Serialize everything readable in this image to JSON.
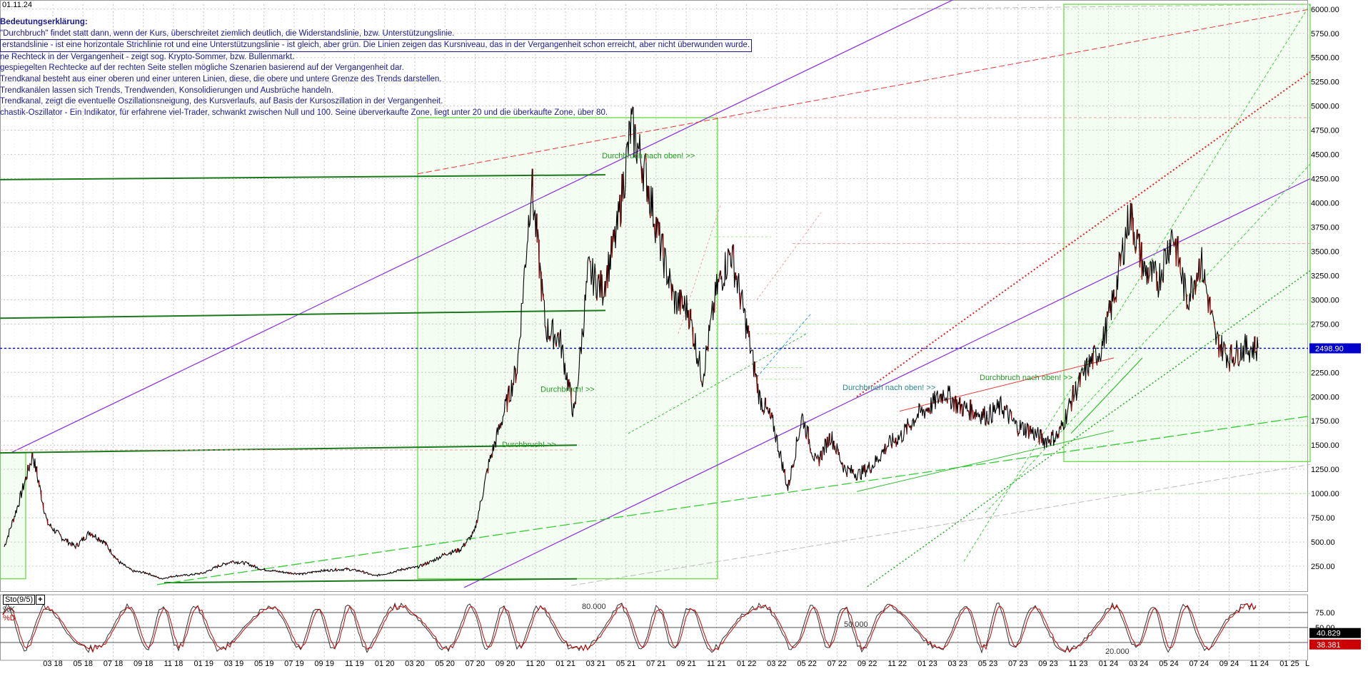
{
  "date_label": "01.11.24",
  "legend": {
    "title": "Bedeutungserklärung:",
    "lines": [
      "\"Durchbruch\" findet statt dann, wenn der Kurs, überschreitet ziemlich deutlich, die Widerstandslinie, bzw. Unterstützungslinie.",
      "erstandslinie - ist eine horizontale Strichlinie rot und eine Unterstützungslinie - ist gleich, aber grün. Die Linien zeigen das Kursniveau, das in der Vergangenheit schon erreicht, aber nicht überwunden wurde.",
      "ne Rechteck in der Vergangenheit - zeigt sog. Krypto-Sommer, bzw. Bullenmarkt.",
      "gespiegelten Rechtecke auf der rechten Seite stellen mögliche Szenarien basierend auf der Vergangenheit dar.",
      "Trendkanal besteht aus einer oberen und einer unteren Linien, diese, die obere und untere Grenze des Trends darstellen.",
      "Trendkanälen lassen sich Trends, Trendwenden, Konsolidierungen und Ausbrüche handeln.",
      "Trendkanal, zeigt die eventuelle Oszillationsneigung, des Kursverlaufs, auf Basis der Kursoszillation in der Vergangenheit.",
      "chastik-Oszillator - Ein Indikator, für erfahrene viel-Trader, schwankt zwischen Null und 100. Seine überverkaufte Zone, liegt unter 20 und die überkaufte Zone, über 80."
    ]
  },
  "colors": {
    "price_line": "#000000",
    "down_candle": "#cc0000",
    "purple_trend": "#8a2be2",
    "green_rect": "#66dd44",
    "dark_green": "#1a7a1a",
    "red_dash": "#ee3333",
    "current_price_box": "#0000cc",
    "k_box": "#000000",
    "d_box": "#cc0000"
  },
  "chart_data": [
    {
      "type": "line",
      "title": "",
      "y_ticks": [
        250,
        500,
        750,
        1000,
        1250,
        1500,
        1750,
        2000,
        2250,
        2500,
        2750,
        3000,
        3250,
        3500,
        3750,
        4000,
        4250,
        4500,
        4750,
        5000,
        5250,
        5500,
        5750,
        6000
      ],
      "y_tick_labels": [
        "250.00",
        "500.00",
        "750.00",
        "1000.00",
        "1250.00",
        "1500.00",
        "1750.00",
        "2000.00",
        "2250.00",
        "2500.00",
        "2750.00",
        "3000.00",
        "3250.00",
        "3500.00",
        "3750.00",
        "4000.00",
        "4250.00",
        "4500.00",
        "4750.00",
        "5000.00",
        "5250.00",
        "5500.00",
        "5750.00",
        "6000.00"
      ],
      "ylim": [
        0,
        6050
      ],
      "x_ticks": [
        "03 18",
        "05 18",
        "07 18",
        "09 18",
        "11 18",
        "01 19",
        "03 19",
        "05 19",
        "07 19",
        "09 19",
        "11 19",
        "01 20",
        "03 20",
        "05 20",
        "07 20",
        "09 20",
        "11 20",
        "01 21",
        "03 21",
        "05 21",
        "07 21",
        "09 21",
        "11 21",
        "01 22",
        "03 22",
        "05 22",
        "07 22",
        "09 22",
        "11 22",
        "01 23",
        "03 23",
        "05 23",
        "07 23",
        "09 23",
        "11 23",
        "01 24",
        "03 24",
        "05 24",
        "07 24",
        "09 24",
        "11 24",
        "01 25"
      ],
      "x_axis_end_label": "L",
      "current_value_label": "2498.90",
      "current_value": 2498.9,
      "series": [
        {
          "x": [
            0,
            1,
            2,
            3,
            4,
            5,
            6,
            7,
            8,
            9,
            10,
            11,
            12,
            13,
            14,
            15,
            16,
            17,
            18,
            19,
            20,
            21,
            22,
            23,
            24,
            25,
            26,
            27,
            28,
            29,
            30,
            31,
            32,
            33,
            34,
            35,
            36,
            37,
            38,
            39,
            40,
            41,
            42,
            43,
            44,
            45,
            46,
            47,
            48,
            49,
            50,
            51,
            52,
            53,
            54,
            55,
            56,
            57,
            58,
            59,
            60,
            61,
            62,
            63,
            64,
            65,
            66,
            67,
            68,
            69,
            70,
            71,
            72,
            73,
            74,
            75,
            76,
            77,
            78,
            79,
            80,
            81,
            82,
            83,
            84,
            85,
            86,
            87,
            88
          ],
          "values": [
            450,
            900,
            1400,
            700,
            550,
            450,
            600,
            500,
            300,
            200,
            180,
            120,
            150,
            160,
            180,
            250,
            300,
            280,
            220,
            200,
            180,
            170,
            200,
            210,
            220,
            200,
            150,
            180,
            220,
            240,
            300,
            380,
            420,
            600,
            1300,
            1800,
            2300,
            4200,
            2700,
            2600,
            1800,
            3300,
            3100,
            3700,
            4800,
            4300,
            3600,
            3000,
            2900,
            2200,
            3100,
            3500,
            2800,
            2000,
            1700,
            1050,
            1800,
            1300,
            1600,
            1250,
            1200,
            1300,
            1500,
            1600,
            1800,
            1900,
            2050,
            1900,
            1850,
            1800,
            1900,
            1700,
            1650,
            1550,
            1600,
            2000,
            2300,
            2500,
            3100,
            3900,
            3300,
            3200,
            3700,
            3000,
            3400,
            2600,
            2400,
            2500,
            2500
          ]
        }
      ],
      "annotations": [
        "Durchbruch nach oben! >>",
        "Durchbruch! >>",
        "Durchbruch! >>",
        "Durchbruch nach oben! >>",
        "Durchbruch nach oben! >>"
      ]
    },
    {
      "type": "line",
      "title": "Sto(9/5)",
      "y_ticks": [
        25,
        50,
        75
      ],
      "y_tick_labels": [
        "25.00",
        "50.00",
        "75.00"
      ],
      "ylim": [
        0,
        100
      ],
      "level_labels": [
        "80.000",
        "50.000",
        "20.000"
      ],
      "series": [
        {
          "name": "%K",
          "last_value_label": "40.829",
          "last_value": 40.829
        },
        {
          "name": "%D",
          "last_value_label": "38.381",
          "last_value": 38.381
        }
      ]
    }
  ]
}
